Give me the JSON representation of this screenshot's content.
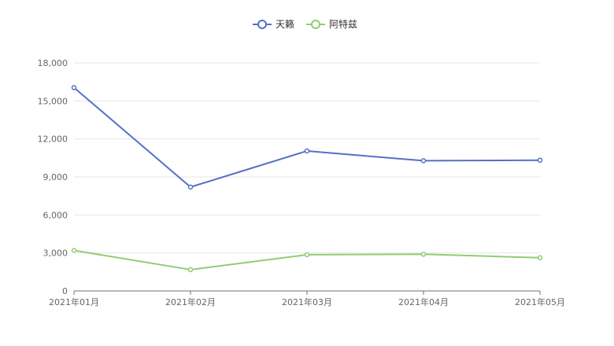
{
  "chart_data": {
    "type": "line",
    "categories": [
      "2021年01月",
      "2021年02月",
      "2021年03月",
      "2021年04月",
      "2021年05月"
    ],
    "series": [
      {
        "name": "天籁",
        "color": "#5470c6",
        "values": [
          16050,
          8200,
          11050,
          10280,
          10320
        ]
      },
      {
        "name": "阿特兹",
        "color": "#91cc75",
        "values": [
          3200,
          1680,
          2860,
          2900,
          2620
        ]
      }
    ],
    "ylim": [
      0,
      18000
    ],
    "yticks": [
      0,
      3000,
      6000,
      9000,
      12000,
      15000,
      18000
    ],
    "ytick_labels": [
      "0",
      "3,000",
      "6,000",
      "9,000",
      "12,000",
      "15,000",
      "18,000"
    ],
    "grid": true,
    "legend_position": "top-center"
  }
}
